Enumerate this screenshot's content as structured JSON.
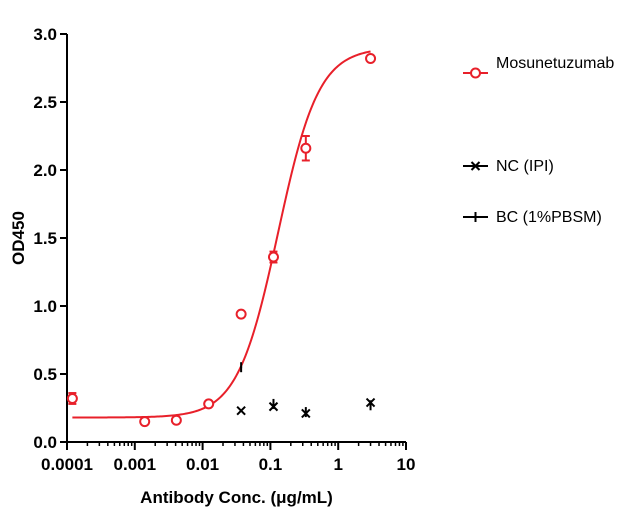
{
  "chart_data": {
    "type": "scatter",
    "xlabel": "Antibody Conc. (μg/mL)",
    "ylabel": "OD450",
    "x_scale": "log",
    "xlim": [
      0.0001,
      10
    ],
    "ylim": [
      0,
      3.0
    ],
    "x_ticks": [
      {
        "value": 0.0001,
        "label": "0.0001"
      },
      {
        "value": 0.001,
        "label": "0.001"
      },
      {
        "value": 0.01,
        "label": "0.01"
      },
      {
        "value": 0.1,
        "label": "0.1"
      },
      {
        "value": 1,
        "label": "1"
      },
      {
        "value": 10,
        "label": "10"
      }
    ],
    "y_ticks": [
      {
        "value": 0.0,
        "label": "0.0"
      },
      {
        "value": 0.5,
        "label": "0.5"
      },
      {
        "value": 1.0,
        "label": "1.0"
      },
      {
        "value": 1.5,
        "label": "1.5"
      },
      {
        "value": 2.0,
        "label": "2.0"
      },
      {
        "value": 2.5,
        "label": "2.5"
      },
      {
        "value": 3.0,
        "label": "3.0"
      }
    ],
    "grid": false,
    "legend_position": "right",
    "series": [
      {
        "name": "Mosunetuzumab",
        "marker": "circle",
        "color": "#e8202a",
        "fit": "sigmoidal",
        "fit_params": {
          "bottom": 0.18,
          "top": 2.9,
          "ec50": 0.13,
          "hill": 1.45
        },
        "points": [
          {
            "x": 0.00012,
            "y": 0.32,
            "err": 0.04
          },
          {
            "x": 0.0014,
            "y": 0.15,
            "err": 0.0
          },
          {
            "x": 0.0041,
            "y": 0.16,
            "err": 0.0
          },
          {
            "x": 0.0123,
            "y": 0.28,
            "err": 0.0
          },
          {
            "x": 0.037,
            "y": 0.94,
            "err": 0.0
          },
          {
            "x": 0.111,
            "y": 1.36,
            "err": 0.04
          },
          {
            "x": 0.333,
            "y": 2.16,
            "err": 0.09
          },
          {
            "x": 3.0,
            "y": 2.82,
            "err": 0.0
          }
        ]
      },
      {
        "name": "NC (IPI)",
        "marker": "x",
        "color": "#000000",
        "points": [
          {
            "x": 0.037,
            "y": 0.23
          },
          {
            "x": 0.111,
            "y": 0.26
          },
          {
            "x": 0.333,
            "y": 0.21
          },
          {
            "x": 3.0,
            "y": 0.29
          }
        ]
      },
      {
        "name": "BC (1%PBSM)",
        "marker": "plus",
        "color": "#000000",
        "points": [
          {
            "x": 0.037,
            "y": 0.55
          },
          {
            "x": 0.111,
            "y": 0.28
          },
          {
            "x": 0.333,
            "y": 0.22
          },
          {
            "x": 3.0,
            "y": 0.27
          }
        ]
      }
    ]
  }
}
